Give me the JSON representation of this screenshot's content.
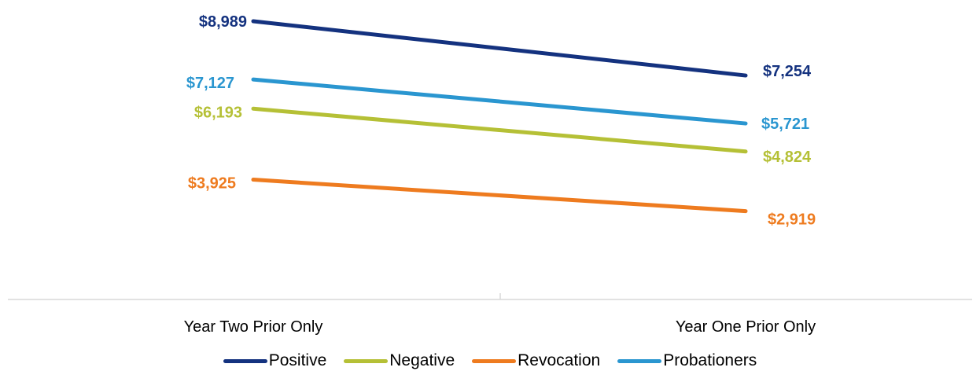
{
  "chart_data": {
    "type": "line",
    "categories": [
      "Year Two Prior Only",
      "Year One Prior Only"
    ],
    "series": [
      {
        "name": "Positive",
        "values": [
          8989,
          7254
        ],
        "labels": [
          "$8,989",
          "$7,254"
        ],
        "color": "#14327f"
      },
      {
        "name": "Negative",
        "values": [
          6193,
          4824
        ],
        "labels": [
          "$6,193",
          "$4,824"
        ],
        "color": "#b5c036"
      },
      {
        "name": "Revocation",
        "values": [
          3925,
          2919
        ],
        "labels": [
          "$3,925",
          "$2,919"
        ],
        "color": "#ee7b1f"
      },
      {
        "name": "Probationers",
        "values": [
          7127,
          5721
        ],
        "labels": [
          "$7,127",
          "$5,721"
        ],
        "color": "#2a96d0"
      }
    ],
    "legend_position": "bottom",
    "grid": false,
    "y_axis_visible": false
  }
}
